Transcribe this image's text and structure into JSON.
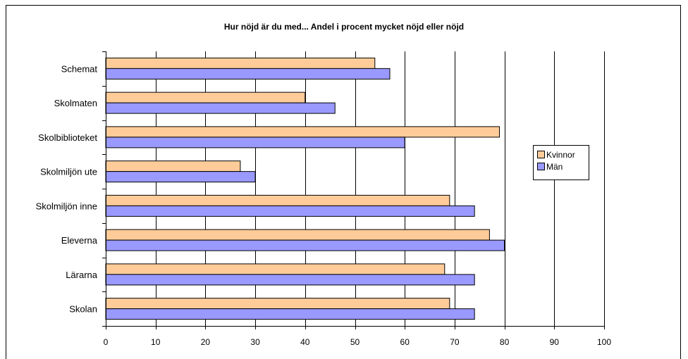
{
  "chart_data": {
    "type": "bar",
    "orientation": "horizontal",
    "title": "Hur nöjd är du med... Andel i procent mycket nöjd eller nöjd",
    "xlabel": "",
    "ylabel": "",
    "categories": [
      "Schemat",
      "Skolmaten",
      "Skolbiblioteket",
      "Skolmiljön ute",
      "Skolmiljön inne",
      "Eleverna",
      "Lärarna",
      "Skolan"
    ],
    "series": [
      {
        "name": "Kvinnor",
        "color": "#FFCC99",
        "values": [
          54,
          40,
          79,
          27,
          69,
          77,
          68,
          69
        ]
      },
      {
        "name": "Män",
        "color": "#9999FF",
        "values": [
          57,
          46,
          60,
          30,
          74,
          80,
          74,
          74
        ]
      }
    ],
    "xlim": [
      0,
      100
    ],
    "xticks": [
      "0",
      "10",
      "20",
      "30",
      "40",
      "50",
      "60",
      "70",
      "80",
      "90",
      "100"
    ],
    "grid": "vertical",
    "legend": "right"
  }
}
